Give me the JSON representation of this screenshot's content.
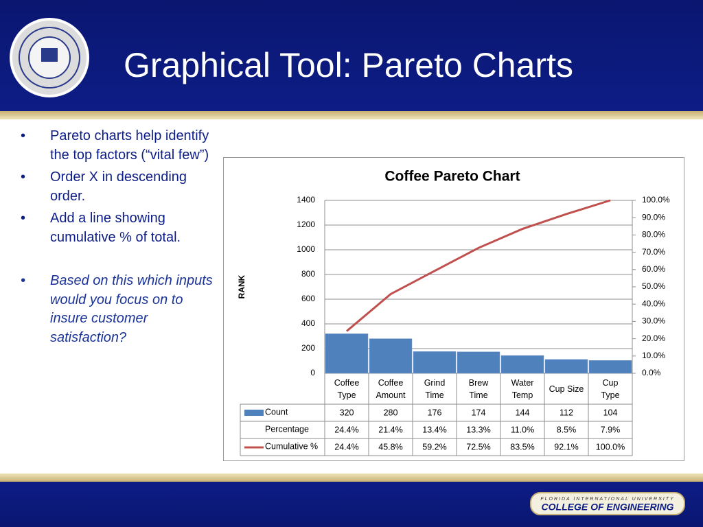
{
  "header": {
    "title": "Graphical Tool: Pareto Charts"
  },
  "bullets": [
    {
      "text": "Pareto charts help identify the top factors (“vital few”)",
      "emphasis": false
    },
    {
      "text": "Order X in descending order.",
      "emphasis": false
    },
    {
      "text": "Add a line showing cumulative % of total.",
      "emphasis": false
    },
    {
      "text": "Based on this which inputs would you focus on to insure customer satisfaction?",
      "emphasis": true
    }
  ],
  "chart_data": {
    "type": "bar",
    "title": "Coffee Pareto Chart",
    "ylabel": "RANK",
    "categories": [
      "Coffee Type",
      "Coffee Amount",
      "Grind Time",
      "Brew Time",
      "Water Temp",
      "Cup Size",
      "Cup Type"
    ],
    "series": [
      {
        "name": "Count",
        "color": "#4f81bd",
        "values": [
          320,
          280,
          176,
          174,
          144,
          112,
          104
        ]
      },
      {
        "name": "Percentage",
        "values": [
          24.4,
          21.4,
          13.4,
          13.3,
          11.0,
          8.5,
          7.9
        ],
        "value_labels": [
          "24.4%",
          "21.4%",
          "13.4%",
          "13.3%",
          "11.0%",
          "8.5%",
          "7.9%"
        ]
      },
      {
        "name": "Cumulative %",
        "color": "#c0504d",
        "type": "line",
        "axis": "y2",
        "values": [
          24.4,
          45.8,
          59.2,
          72.5,
          83.5,
          92.1,
          100.0
        ],
        "value_labels": [
          "24.4%",
          "45.8%",
          "59.2%",
          "72.5%",
          "83.5%",
          "92.1%",
          "100.0%"
        ]
      }
    ],
    "ylim": [
      0,
      1400
    ],
    "yticks": [
      0,
      200,
      400,
      600,
      800,
      1000,
      1200,
      1400
    ],
    "y2lim": [
      0,
      100
    ],
    "y2ticks": [
      {
        "value": 0,
        "label": "0.0%"
      },
      {
        "value": 10,
        "label": "10.0%"
      },
      {
        "value": 20,
        "label": "20.0%"
      },
      {
        "value": 30,
        "label": "30.0%"
      },
      {
        "value": 40,
        "label": "40.0%"
      },
      {
        "value": 50,
        "label": "50.0%"
      },
      {
        "value": 60,
        "label": "60.0%"
      },
      {
        "value": 70,
        "label": "70.0%"
      },
      {
        "value": 80,
        "label": "80.0%"
      },
      {
        "value": 90,
        "label": "90.0%"
      },
      {
        "value": 100,
        "label": "100.0%"
      }
    ],
    "grid": true,
    "data_table": true
  },
  "footer": {
    "university": "FLORIDA INTERNATIONAL UNIVERSITY",
    "college": "COLLEGE OF ENGINEERING"
  }
}
